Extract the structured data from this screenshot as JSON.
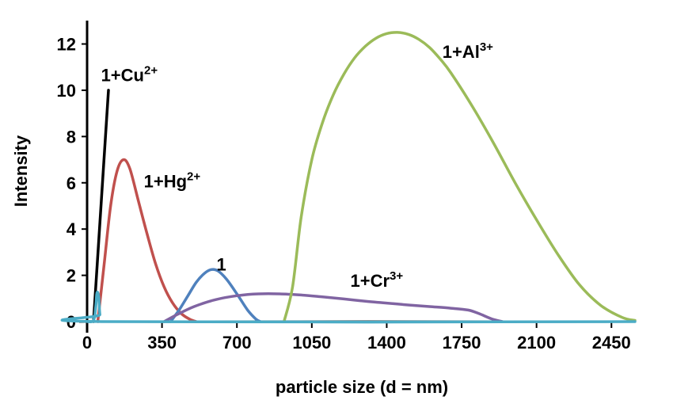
{
  "chart_data": {
    "type": "line",
    "title": "",
    "xlabel": "particle size (d = nm)",
    "ylabel": "Intensity",
    "xlim": [
      0,
      2560
    ],
    "ylim": [
      0,
      12.6
    ],
    "xticks": [
      0,
      350,
      700,
      1050,
      1400,
      1750,
      2100,
      2450
    ],
    "yticks": [
      0,
      2,
      4,
      6,
      8,
      10,
      12
    ],
    "grid": false,
    "legend": "none",
    "series": [
      {
        "name": "1+Cu2+",
        "label_base": "1+Cu",
        "label_sup": "2+",
        "color": "#000000",
        "x": [
          30,
          100
        ],
        "y": [
          0,
          10.0
        ],
        "label_x": 65,
        "label_y": 10.4
      },
      {
        "name": "1+Hg2+",
        "label_base": "1+Hg",
        "label_sup": "2+",
        "color": "#c0504d",
        "x": [
          50,
          80,
          110,
          140,
          170,
          200,
          240,
          280,
          320,
          360,
          400,
          440,
          480,
          510
        ],
        "y": [
          0,
          2.5,
          5.0,
          6.5,
          7.0,
          6.6,
          5.2,
          3.8,
          2.5,
          1.5,
          0.8,
          0.35,
          0.1,
          0
        ],
        "label_x": 265,
        "label_y": 5.8
      },
      {
        "name": "1",
        "label_base": "1",
        "label_sup": "",
        "color": "#4f81bd",
        "x": [
          390,
          430,
          470,
          510,
          550,
          580,
          610,
          650,
          700,
          750,
          790,
          810
        ],
        "y": [
          0,
          0.5,
          1.1,
          1.7,
          2.1,
          2.25,
          2.2,
          1.85,
          1.2,
          0.5,
          0.1,
          0
        ],
        "label_x": 605,
        "label_y": 2.2
      },
      {
        "name": "1+Cr3+",
        "label_base": "1+Cr",
        "label_sup": "3+",
        "color": "#8064a2",
        "x": [
          360,
          420,
          500,
          600,
          700,
          800,
          900,
          1000,
          1100,
          1200,
          1300,
          1400,
          1500,
          1600,
          1700,
          1780,
          1830,
          1890,
          1940
        ],
        "y": [
          0,
          0.3,
          0.65,
          0.95,
          1.12,
          1.2,
          1.2,
          1.15,
          1.07,
          0.98,
          0.88,
          0.8,
          0.72,
          0.65,
          0.58,
          0.5,
          0.35,
          0.12,
          0
        ],
        "label_x": 1230,
        "label_y": 1.5
      },
      {
        "name": "1+Al3+",
        "label_base": "1+Al",
        "label_sup": "3+",
        "color": "#9bbb59",
        "x": [
          920,
          960,
          1000,
          1050,
          1100,
          1150,
          1200,
          1250,
          1300,
          1350,
          1400,
          1450,
          1500,
          1550,
          1600,
          1650,
          1700,
          1800,
          1900,
          2000,
          2100,
          2200,
          2300,
          2400,
          2500,
          2560
        ],
        "y": [
          0,
          1.5,
          4.5,
          7.0,
          8.6,
          9.8,
          10.7,
          11.4,
          11.9,
          12.25,
          12.45,
          12.5,
          12.42,
          12.2,
          11.85,
          11.35,
          10.75,
          9.3,
          7.7,
          6.0,
          4.4,
          2.9,
          1.6,
          0.7,
          0.18,
          0.05
        ],
        "label_x": 1660,
        "label_y": 11.4
      },
      {
        "name": "",
        "label_base": "",
        "label_sup": "",
        "color": "#4bacc6",
        "x": [
          0,
          30,
          40,
          45,
          50,
          55,
          60,
          70,
          2560
        ],
        "y": [
          0,
          0.05,
          0.6,
          1.2,
          1.25,
          1.0,
          0.3,
          0,
          0
        ],
        "label_x": 0,
        "label_y": 0
      }
    ]
  }
}
